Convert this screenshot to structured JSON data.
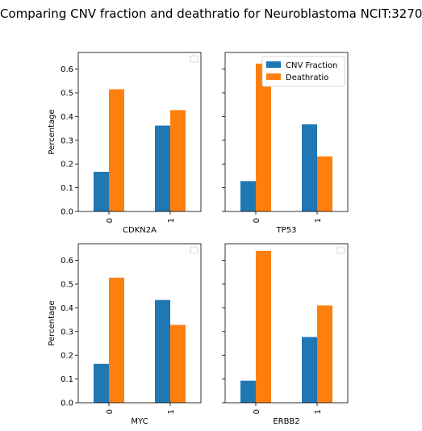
{
  "title": "Comparing CNV fraction and deathratio for Neuroblastoma NCIT:3270",
  "chart_data": {
    "type": "bar",
    "grid": false,
    "ylim": [
      0,
      0.67
    ],
    "yticks": [
      "0.0",
      "0.1",
      "0.2",
      "0.3",
      "0.4",
      "0.5",
      "0.6"
    ],
    "ytick_values": [
      0,
      0.1,
      0.2,
      0.3,
      0.4,
      0.5,
      0.6
    ],
    "ylabel": "Percentage",
    "legend": {
      "position": "top-right",
      "entries": [
        "CNV Fraction",
        "Deathratio"
      ]
    },
    "colors": [
      "#1f77b4",
      "#ff7f0e"
    ],
    "subplots": [
      {
        "xlabel": "CDKN2A",
        "categories": [
          "0",
          "1"
        ],
        "series": [
          {
            "name": "CNV Fraction",
            "values": [
              0.167,
              0.362
            ]
          },
          {
            "name": "Deathratio",
            "values": [
              0.515,
              0.427
            ]
          }
        ]
      },
      {
        "xlabel": "TP53",
        "categories": [
          "0",
          "1"
        ],
        "series": [
          {
            "name": "CNV Fraction",
            "values": [
              0.128,
              0.367
            ]
          },
          {
            "name": "Deathratio",
            "values": [
              0.623,
              0.232
            ]
          }
        ]
      },
      {
        "xlabel": "MYC",
        "categories": [
          "0",
          "1"
        ],
        "series": [
          {
            "name": "CNV Fraction",
            "values": [
              0.164,
              0.433
            ]
          },
          {
            "name": "Deathratio",
            "values": [
              0.527,
              0.328
            ]
          }
        ]
      },
      {
        "xlabel": "ERBB2",
        "categories": [
          "0",
          "1"
        ],
        "series": [
          {
            "name": "CNV Fraction",
            "values": [
              0.093,
              0.277
            ]
          },
          {
            "name": "Deathratio",
            "values": [
              0.64,
              0.41
            ]
          }
        ]
      }
    ]
  }
}
